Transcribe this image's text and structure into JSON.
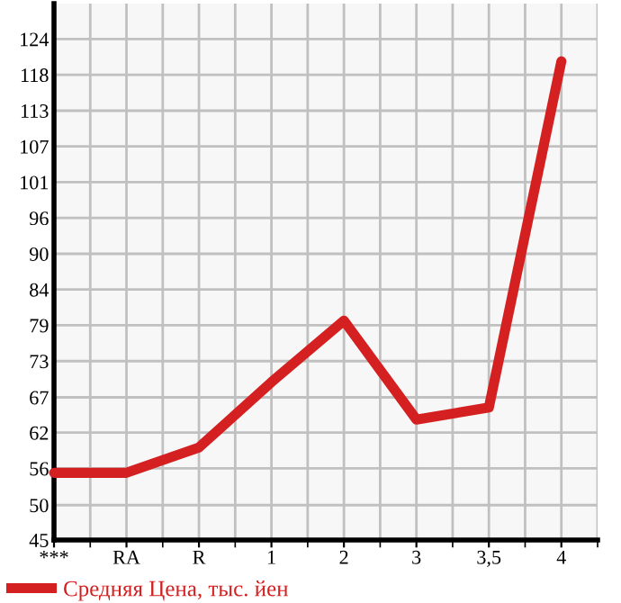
{
  "chart_data": {
    "type": "line",
    "categories": [
      "***",
      "RA",
      "R",
      "1",
      "2",
      "3",
      "3,5",
      "4"
    ],
    "series": [
      {
        "name": "Средняя Цена, тыс. йен",
        "color": "#d42020",
        "values": [
          55.6,
          55.6,
          59.6,
          69.9,
          79.6,
          64.0,
          65.9,
          120.5
        ]
      }
    ],
    "ylim": [
      45,
      129.6
    ],
    "yticks": [
      45,
      {
        "value": 50.5,
        "label": "50"
      },
      {
        "value": 56.29,
        "label": "56"
      },
      {
        "value": 61.93,
        "label": "62"
      },
      {
        "value": 67.5,
        "label": "67"
      },
      {
        "value": 73.21,
        "label": "73"
      },
      {
        "value": 78.86,
        "label": "79"
      },
      {
        "value": 84.5,
        "label": "84"
      },
      {
        "value": 90.14,
        "label": "90"
      },
      {
        "value": 95.79,
        "label": "96"
      },
      {
        "value": 101.43,
        "label": "101"
      },
      {
        "value": 107.07,
        "label": "107"
      },
      {
        "value": 112.71,
        "label": "113"
      },
      {
        "value": 118.36,
        "label": "118"
      },
      {
        "value": 124,
        "label": "124"
      }
    ],
    "grid": true,
    "legend": "bottom left",
    "marker": "none",
    "line_style": "solid"
  }
}
